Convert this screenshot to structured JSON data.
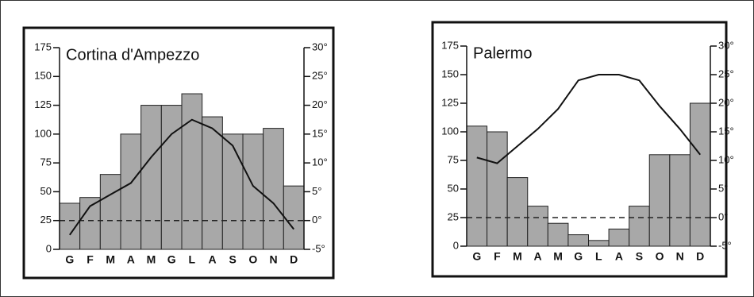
{
  "chart_data": [
    {
      "type": "climograph",
      "title": "Cortina d'Ampezzo",
      "categories": [
        "G",
        "F",
        "M",
        "A",
        "M",
        "G",
        "L",
        "A",
        "S",
        "O",
        "N",
        "D"
      ],
      "series": [
        {
          "type": "bar",
          "color": "#a8a8a8",
          "values": [
            40,
            45,
            65,
            100,
            125,
            125,
            135,
            115,
            100,
            100,
            105,
            55
          ]
        },
        {
          "type": "line",
          "axis": "y2",
          "color": "#111111",
          "values": [
            -2.5,
            2.5,
            4.5,
            6.5,
            11,
            15,
            17.5,
            16,
            13,
            6,
            3,
            -1.5
          ]
        }
      ],
      "ylim": [
        0,
        175
      ],
      "yticks": [
        0,
        25,
        50,
        75,
        100,
        125,
        150,
        175
      ],
      "y2lim": [
        -5,
        30
      ],
      "y2ticks": [
        {
          "value": -5,
          "label": "-5°"
        },
        {
          "value": 0,
          "label": "0°"
        },
        {
          "value": 5,
          "label": "5°"
        },
        {
          "value": 10,
          "label": "10°"
        },
        {
          "value": 15,
          "label": "15°"
        },
        {
          "value": 20,
          "label": "20°"
        },
        {
          "value": 25,
          "label": "25°"
        },
        {
          "value": 30,
          "label": "30°"
        }
      ],
      "dashed_zero_line": true
    },
    {
      "type": "climograph",
      "title": "Palermo",
      "categories": [
        "G",
        "F",
        "M",
        "A",
        "M",
        "G",
        "L",
        "A",
        "S",
        "O",
        "N",
        "D"
      ],
      "series": [
        {
          "type": "bar",
          "color": "#a8a8a8",
          "values": [
            105,
            100,
            60,
            35,
            20,
            10,
            5,
            15,
            35,
            80,
            80,
            125
          ]
        },
        {
          "type": "line",
          "axis": "y2",
          "color": "#111111",
          "values": [
            10.5,
            9.5,
            12.5,
            15.5,
            19,
            24,
            25,
            25,
            24,
            19.5,
            15.5,
            11
          ]
        }
      ],
      "ylim": [
        0,
        175
      ],
      "yticks": [
        0,
        25,
        50,
        75,
        100,
        125,
        150,
        175
      ],
      "y2lim": [
        -5,
        30
      ],
      "y2ticks": [
        {
          "value": -5,
          "label": "-5°"
        },
        {
          "value": 0,
          "label": "0°"
        },
        {
          "value": 5,
          "label": "5°"
        },
        {
          "value": 10,
          "label": "10°"
        },
        {
          "value": 15,
          "label": "15°"
        },
        {
          "value": 20,
          "label": "20°"
        },
        {
          "value": 25,
          "label": "25°"
        },
        {
          "value": 30,
          "label": "30°"
        }
      ],
      "dashed_zero_line": true
    }
  ]
}
